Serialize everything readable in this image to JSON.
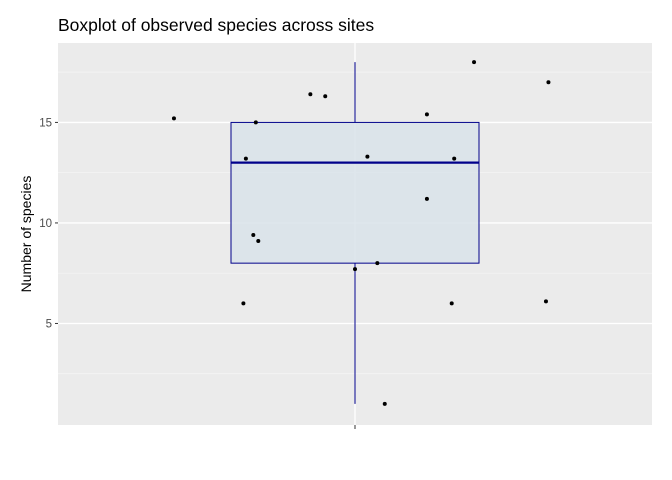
{
  "chart_data": {
    "type": "boxplot",
    "title": "Boxplot of observed species across sites",
    "xlabel": "",
    "ylabel": "Number of species",
    "ylim": [
      -0.05,
      18.95
    ],
    "y_ticks": [
      5,
      10,
      15
    ],
    "grid": true,
    "background": "#ebebeb",
    "box": {
      "min": 1,
      "q1": 8,
      "median": 13,
      "q3": 15,
      "max": 18,
      "fill": "#d9e3ea",
      "stroke": "#00008b"
    },
    "points": [
      {
        "x": -0.73,
        "y": 15.2
      },
      {
        "x": -0.45,
        "y": 6.0
      },
      {
        "x": -0.44,
        "y": 13.2
      },
      {
        "x": -0.41,
        "y": 9.4
      },
      {
        "x": -0.4,
        "y": 15.0
      },
      {
        "x": -0.39,
        "y": 9.1
      },
      {
        "x": -0.18,
        "y": 16.4
      },
      {
        "x": -0.12,
        "y": 16.3
      },
      {
        "x": 0.0,
        "y": 7.7
      },
      {
        "x": 0.05,
        "y": 13.3
      },
      {
        "x": 0.09,
        "y": 8.0
      },
      {
        "x": 0.12,
        "y": 1.0
      },
      {
        "x": 0.29,
        "y": 15.4
      },
      {
        "x": 0.29,
        "y": 11.2
      },
      {
        "x": 0.39,
        "y": 6.0
      },
      {
        "x": 0.4,
        "y": 13.2
      },
      {
        "x": 0.48,
        "y": 18.0
      },
      {
        "x": 0.77,
        "y": 6.1
      },
      {
        "x": 0.78,
        "y": 17.0
      }
    ],
    "point_color": "#000000"
  }
}
